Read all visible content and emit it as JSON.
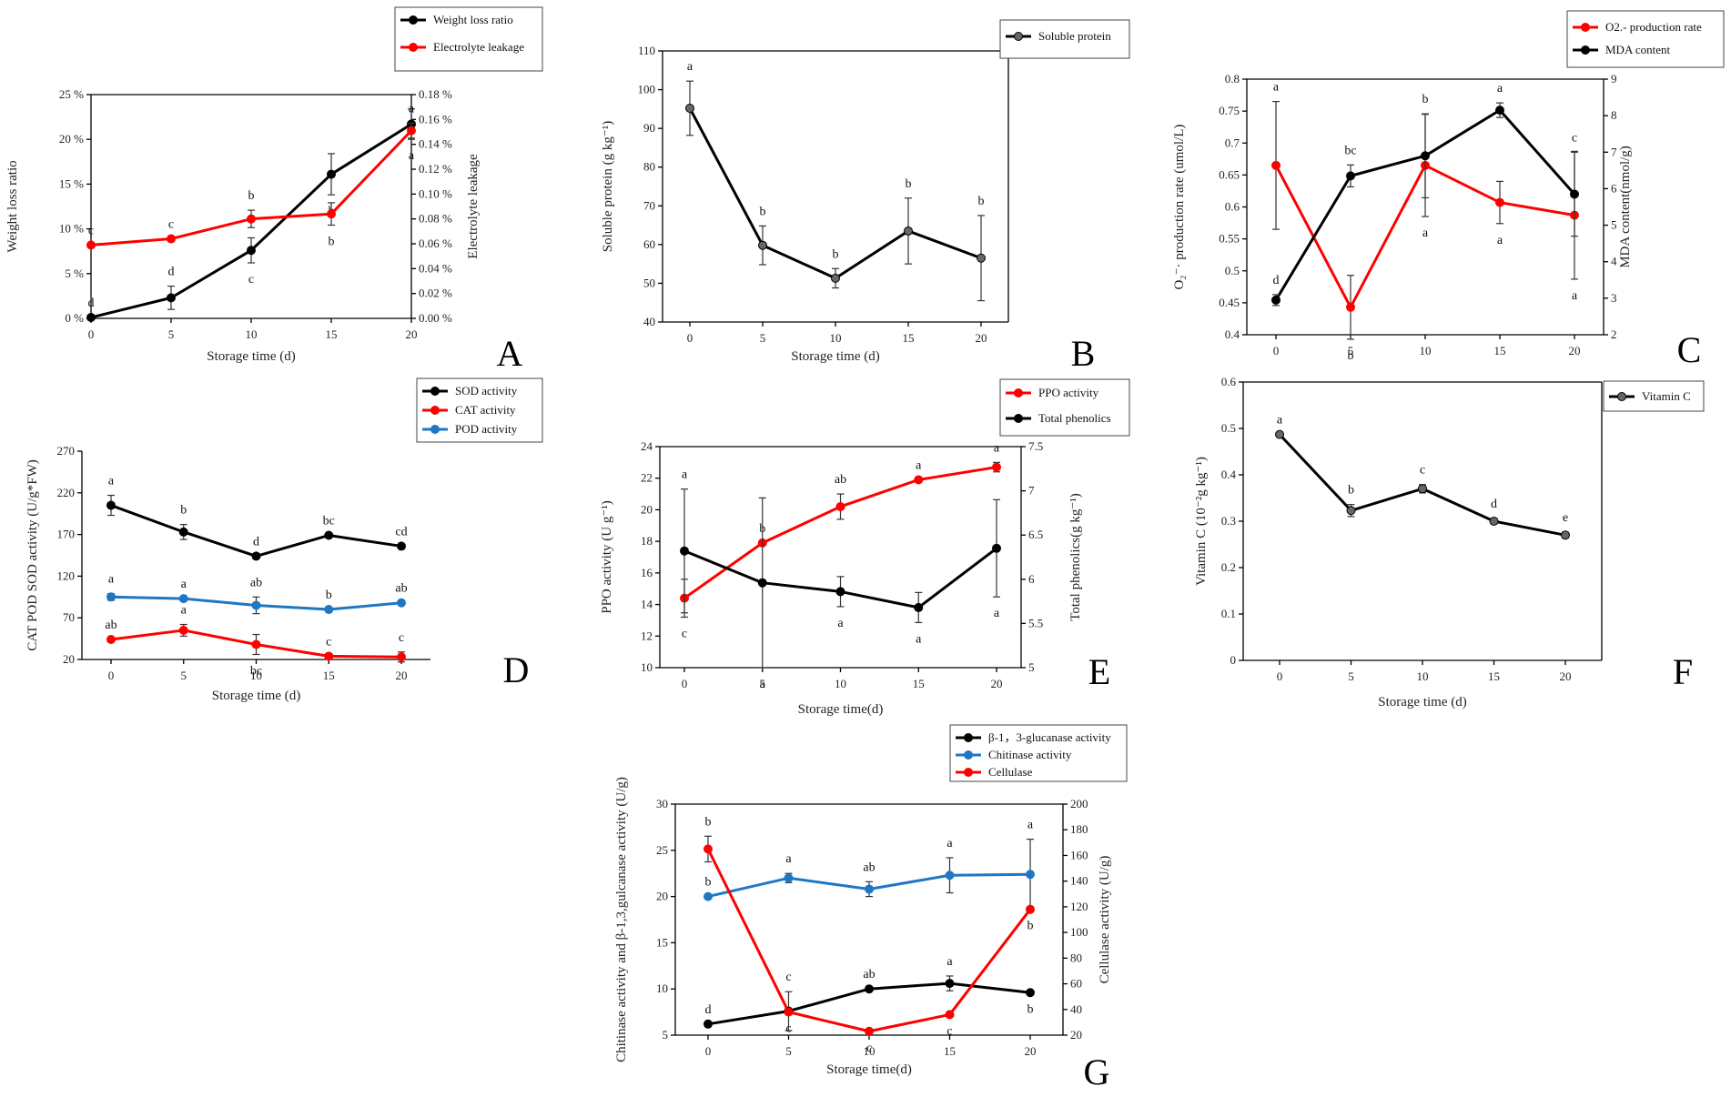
{
  "chart_data": [
    {
      "id": "A",
      "type": "line",
      "panel_label": "A",
      "x": [
        0,
        5,
        10,
        15,
        20
      ],
      "xlabel": "Storage time (d)",
      "xticks": [
        "0",
        "5",
        "10",
        "15",
        "20"
      ],
      "ylabel": "Weight loss ratio",
      "y2label": "Electrolyte leakage",
      "ylim": [
        0,
        25
      ],
      "y2lim": [
        0,
        0.18
      ],
      "yticks": [
        "0 %",
        "5 %",
        "10 %",
        "15 %",
        "20 %",
        "25 %"
      ],
      "y2ticks": [
        "0.00 %",
        "0.02 %",
        "0.04 %",
        "0.06 %",
        "0.08 %",
        "0.10 %",
        "0.12 %",
        "0.14 %",
        "0.16 %",
        "0.18 %"
      ],
      "series": [
        {
          "name": "Weight loss ratio",
          "axis": "left",
          "color": "#000000",
          "values": [
            0.1,
            2.3,
            7.6,
            16.1,
            21.7
          ],
          "err": [
            0,
            1.3,
            1.4,
            2.3,
            1.7
          ],
          "letters": [
            "d",
            "d",
            "c",
            "b",
            "a"
          ]
        },
        {
          "name": "Electrolyte leakage",
          "axis": "right",
          "color": "#ff0000",
          "values": [
            0.059,
            0.064,
            0.08,
            0.084,
            0.151
          ],
          "err": [
            0,
            0,
            0.007,
            0.009,
            0.006
          ],
          "letters": [
            "c",
            "c",
            "b",
            "b",
            "a"
          ]
        }
      ]
    },
    {
      "id": "B",
      "type": "line",
      "panel_label": "B",
      "x": [
        0,
        5,
        10,
        15,
        20
      ],
      "xlabel": "Storage time (d)",
      "xticks": [
        "0",
        "5",
        "10",
        "15",
        "20"
      ],
      "ylabel": "Soluble protein (g kg⁻¹)",
      "ylim": [
        40,
        110
      ],
      "yticks": [
        "40",
        "50",
        "60",
        "70",
        "80",
        "90",
        "100",
        "110"
      ],
      "series": [
        {
          "name": "Soluble protein",
          "axis": "left",
          "color": "#000000",
          "marker": "#666666",
          "values": [
            95.2,
            59.8,
            51.3,
            63.5,
            56.5
          ],
          "err": [
            7,
            5,
            2.5,
            8.5,
            11
          ],
          "letters": [
            "a",
            "b",
            "b",
            "b",
            "b"
          ]
        }
      ]
    },
    {
      "id": "C",
      "type": "line",
      "panel_label": "C",
      "x": [
        0,
        5,
        10,
        15,
        20
      ],
      "xlabel": "",
      "xticks": [
        "0",
        "5",
        "10",
        "15",
        "20"
      ],
      "ylabel": "O₂⁻· production rate (umol/L)",
      "y2label": "MDA content(nmol/g)",
      "ylim": [
        0.4,
        0.8
      ],
      "y2lim": [
        2,
        9
      ],
      "yticks": [
        "0.4",
        "0.45",
        "0.5",
        "0.55",
        "0.6",
        "0.65",
        "0.7",
        "0.75",
        "0.8"
      ],
      "y2ticks": [
        "2",
        "3",
        "4",
        "5",
        "6",
        "7",
        "8",
        "9"
      ],
      "series": [
        {
          "name": "O2.- production rate",
          "axis": "left",
          "color": "#ff0000",
          "values": [
            0.665,
            0.443,
            0.665,
            0.607,
            0.587
          ],
          "err": [
            0.1,
            0.05,
            0.08,
            0.033,
            0.1
          ],
          "letters": [
            "a",
            "b",
            "a",
            "a",
            "a"
          ]
        },
        {
          "name": "MDA content",
          "axis": "right",
          "color": "#000000",
          "values": [
            2.95,
            6.35,
            6.9,
            8.15,
            5.85
          ],
          "err": [
            0.15,
            0.3,
            1.15,
            0.2,
            1.15
          ],
          "letters": [
            "d",
            "bc",
            "b",
            "a",
            "c"
          ]
        }
      ]
    },
    {
      "id": "D",
      "type": "line",
      "panel_label": "D",
      "x": [
        0,
        5,
        10,
        15,
        20
      ],
      "xlabel": "Storage time (d)",
      "xticks": [
        "0",
        "5",
        "10",
        "15",
        "20"
      ],
      "ylabel": "CAT POD SOD activity (U/g*FW)",
      "ylim": [
        20,
        270
      ],
      "yticks": [
        "20",
        "70",
        "120",
        "170",
        "220",
        "270"
      ],
      "series": [
        {
          "name": "SOD activity",
          "axis": "left",
          "color": "#000000",
          "values": [
            205,
            173,
            144,
            169,
            156
          ],
          "err": [
            12,
            9,
            0,
            0,
            0
          ],
          "letters": [
            "a",
            "b",
            "d",
            "bc",
            "cd"
          ]
        },
        {
          "name": "CAT activity",
          "axis": "left",
          "color": "#ff0000",
          "values": [
            44,
            55,
            38,
            24,
            23
          ],
          "err": [
            0,
            7,
            12,
            0,
            6
          ],
          "letters": [
            "ab",
            "a",
            "bc",
            "c",
            "c"
          ]
        },
        {
          "name": "POD activity",
          "axis": "left",
          "color": "#1f77c4",
          "values": [
            95,
            93,
            85,
            80,
            88
          ],
          "err": [
            4,
            0,
            10,
            0,
            0
          ],
          "letters": [
            "a",
            "a",
            "ab",
            "b",
            "ab"
          ]
        }
      ]
    },
    {
      "id": "E",
      "type": "line",
      "panel_label": "E",
      "x": [
        0,
        5,
        10,
        15,
        20
      ],
      "xlabel": "Storage time(d)",
      "xticks": [
        "0",
        "5",
        "10",
        "15",
        "20"
      ],
      "ylabel": "PPO activity (U g⁻¹)",
      "y2label": "Total phenolics(g kg⁻¹)",
      "ylim": [
        10,
        24
      ],
      "y2lim": [
        5,
        7.5
      ],
      "yticks": [
        "10",
        "12",
        "14",
        "16",
        "18",
        "20",
        "22",
        "24"
      ],
      "y2ticks": [
        "5",
        "5.5",
        "6",
        "6.5",
        "7",
        "7.5"
      ],
      "series": [
        {
          "name": "PPO activity",
          "axis": "left",
          "color": "#ff0000",
          "values": [
            14.4,
            17.9,
            20.2,
            21.9,
            22.7
          ],
          "err": [
            1.2,
            0,
            0.8,
            0,
            0.3
          ],
          "letters": [
            "c",
            "b",
            "ab",
            "a",
            "a"
          ]
        },
        {
          "name": "Total phenolics",
          "axis": "right",
          "color": "#000000",
          "values": [
            6.32,
            5.96,
            5.86,
            5.68,
            6.35
          ],
          "err": [
            0.7,
            0.96,
            0.17,
            0.17,
            0.55
          ],
          "letters": [
            "a",
            "a",
            "a",
            "a",
            "a"
          ]
        }
      ]
    },
    {
      "id": "F",
      "type": "line",
      "panel_label": "F",
      "x": [
        0,
        5,
        10,
        15,
        20
      ],
      "xlabel": "Storage time (d)",
      "xticks": [
        "0",
        "5",
        "10",
        "15",
        "20"
      ],
      "ylabel": "Vitamin C (10⁻²g kg⁻¹)",
      "ylim": [
        0,
        0.6
      ],
      "yticks": [
        "0",
        "0.1",
        "0.2",
        "0.3",
        "0.4",
        "0.5",
        "0.6"
      ],
      "series": [
        {
          "name": "Vitamin C",
          "axis": "left",
          "color": "#000000",
          "marker": "#666666",
          "values": [
            0.487,
            0.323,
            0.37,
            0.3,
            0.27
          ],
          "err": [
            0,
            0.013,
            0.009,
            0.006,
            0.006
          ],
          "letters": [
            "a",
            "b",
            "c",
            "d",
            "e"
          ]
        }
      ]
    },
    {
      "id": "G",
      "type": "line",
      "panel_label": "G",
      "x": [
        0,
        5,
        10,
        15,
        20
      ],
      "xlabel": "Storage time(d)",
      "xticks": [
        "0",
        "5",
        "10",
        "15",
        "20"
      ],
      "ylabel": "Chitinase activity and β-1,3,gulcanase activity (U/g)",
      "y2label": "Cellulase activity (U/g)",
      "ylim": [
        5,
        30
      ],
      "y2lim": [
        20,
        200
      ],
      "yticks": [
        "5",
        "10",
        "15",
        "20",
        "25",
        "30"
      ],
      "y2ticks": [
        "20",
        "40",
        "60",
        "80",
        "100",
        "120",
        "140",
        "160",
        "180",
        "200"
      ],
      "series": [
        {
          "name": "β-1，3-glucanase activity",
          "axis": "left",
          "color": "#000000",
          "values": [
            6.2,
            7.6,
            10.0,
            10.6,
            9.6
          ],
          "err": [
            0,
            2.1,
            0,
            0.8,
            0
          ],
          "letters": [
            "d",
            "c",
            "ab",
            "a",
            "b"
          ]
        },
        {
          "name": "Chitinase activity",
          "axis": "left",
          "color": "#1f77c4",
          "values": [
            20,
            22,
            20.8,
            22.3,
            22.4
          ],
          "err": [
            0,
            0.5,
            0.8,
            1.9,
            3.8
          ],
          "letters": [
            "b",
            "a",
            "ab",
            "a",
            "a"
          ]
        },
        {
          "name": "Cellulase",
          "axis": "right",
          "color": "#ff0000",
          "values": [
            165,
            38,
            23,
            36,
            118
          ],
          "err": [
            10,
            0,
            0,
            0,
            0
          ],
          "letters": [
            "b",
            "c",
            "c",
            "c",
            "b"
          ]
        }
      ]
    }
  ]
}
